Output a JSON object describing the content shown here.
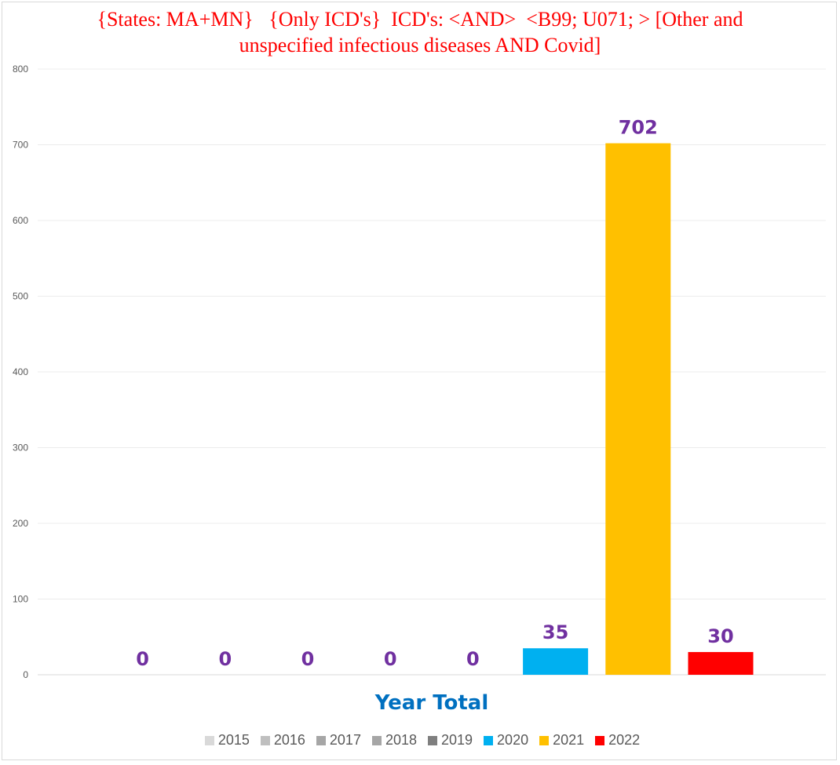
{
  "chart_data": {
    "type": "bar",
    "title_lines": [
      "{States: MA+MN}   {Only ICD's}  ICD's: <AND>  <B99; U071; > [Other and",
      "unspecified infectious diseases AND Covid]"
    ],
    "xlabel": "Year Total",
    "ylabel": "",
    "ylim": [
      0,
      800
    ],
    "yticks": [
      0,
      100,
      200,
      300,
      400,
      500,
      600,
      700,
      800
    ],
    "grid": true,
    "legend_position": "bottom",
    "series": [
      {
        "name": "2015",
        "value": 0,
        "label": "0",
        "color": "#d9d9d9"
      },
      {
        "name": "2016",
        "value": 0,
        "label": "0",
        "color": "#bfbfbf"
      },
      {
        "name": "2017",
        "value": 0,
        "label": "0",
        "color": "#a6a6a6"
      },
      {
        "name": "2018",
        "value": 0,
        "label": "0",
        "color": "#a6a6a6"
      },
      {
        "name": "2019",
        "value": 0,
        "label": "0",
        "color": "#7f7f7f"
      },
      {
        "name": "2020",
        "value": 35,
        "label": "35",
        "color": "#00b0f0"
      },
      {
        "name": "2021",
        "value": 702,
        "label": "702",
        "color": "#ffc000"
      },
      {
        "name": "2022",
        "value": 30,
        "label": "30",
        "color": "#ff0000"
      }
    ],
    "label_color": "#7030a0",
    "title_color": "#ff0000",
    "xlabel_color": "#0070c0"
  }
}
